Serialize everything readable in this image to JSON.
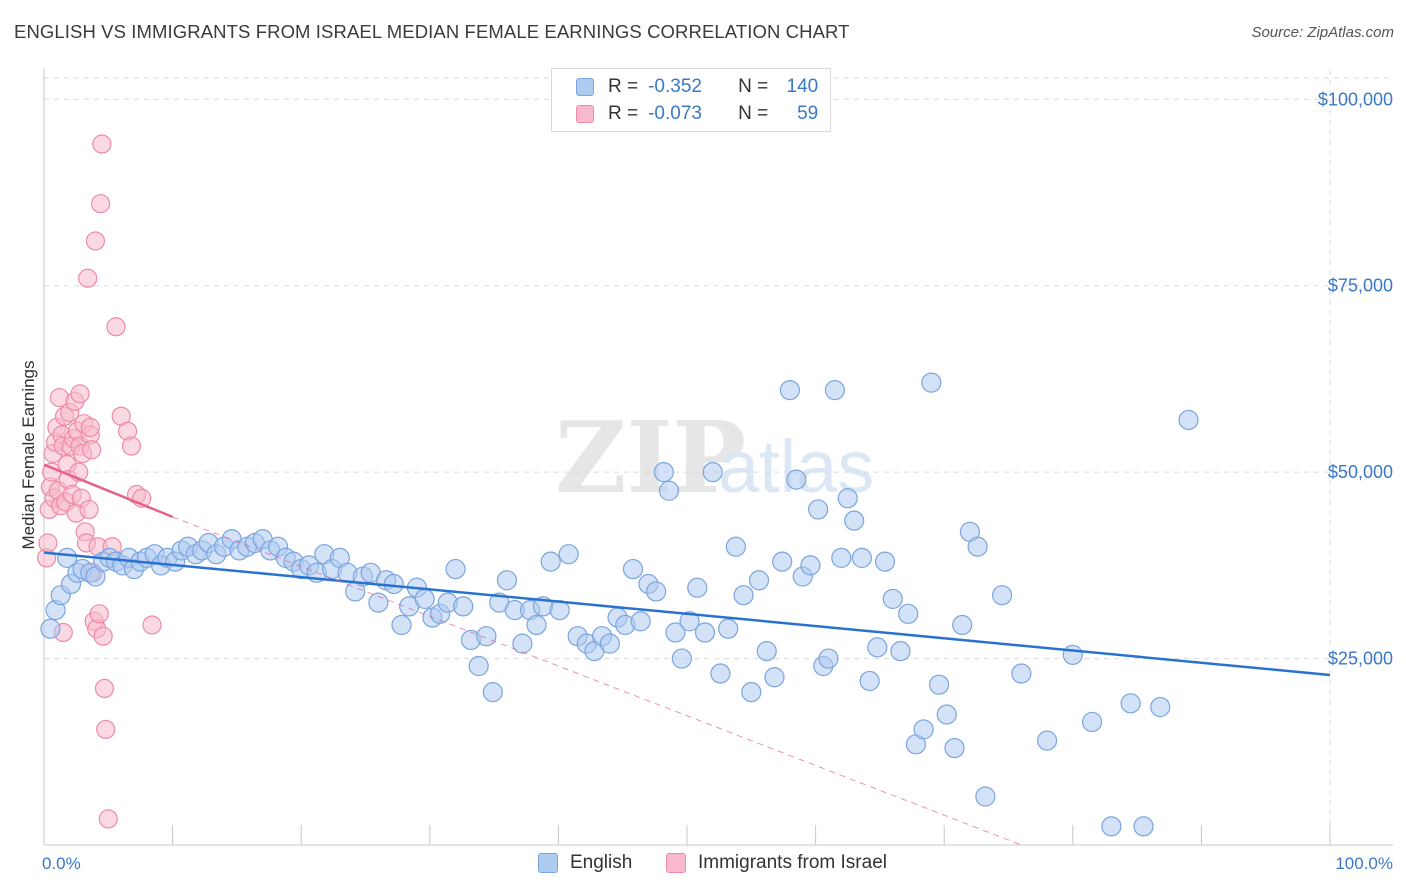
{
  "title": "ENGLISH VS IMMIGRANTS FROM ISRAEL MEDIAN FEMALE EARNINGS CORRELATION CHART",
  "source": "Source: ZipAtlas.com",
  "watermark": {
    "zip": "ZIP",
    "atlas": "atlas"
  },
  "legend": {
    "rows": [
      {
        "r_label": "R =",
        "r_value": "-0.352",
        "n_label": "N =",
        "n_value": "140"
      },
      {
        "r_label": "R =",
        "r_value": "-0.073",
        "n_label": "N =",
        "n_value": "59"
      }
    ]
  },
  "bottom_legend": [
    "English",
    "Immigrants from Israel"
  ],
  "colors": {
    "english_fill": "#aecbf0",
    "english_stroke": "#7aa5de",
    "english_line": "#2a72cf",
    "israel_fill": "#f7b9cb",
    "israel_stroke": "#ee8aa8",
    "israel_line": "#e2648d",
    "tick_text": "#3a78c8",
    "grid": "#dadada"
  },
  "chart_data": {
    "type": "scatter",
    "title": "ENGLISH VS IMMIGRANTS FROM ISRAEL MEDIAN FEMALE EARNINGS CORRELATION CHART",
    "xlabel": "",
    "ylabel": "Median Female Earnings",
    "xlim": [
      0,
      100
    ],
    "ylim": [
      0,
      105000
    ],
    "x_tick_labels": [
      "0.0%",
      "100.0%"
    ],
    "y_ticks": [
      25000,
      50000,
      75000,
      100000
    ],
    "y_tick_labels": [
      "$25,000",
      "$50,000",
      "$75,000",
      "$100,000"
    ],
    "grid": true,
    "legend_position": "top-center",
    "series": [
      {
        "name": "English",
        "r": -0.352,
        "n": 140,
        "trend": {
          "x": [
            0,
            100
          ],
          "y": [
            39200,
            22800
          ],
          "dashed_extension": false
        },
        "points": [
          [
            0.5,
            29000
          ],
          [
            0.9,
            31500
          ],
          [
            1.3,
            33500
          ],
          [
            1.8,
            38500
          ],
          [
            2.1,
            35000
          ],
          [
            2.6,
            36500
          ],
          [
            3.0,
            37000
          ],
          [
            3.6,
            36500
          ],
          [
            4.0,
            36000
          ],
          [
            4.6,
            38000
          ],
          [
            5.1,
            38500
          ],
          [
            5.6,
            38000
          ],
          [
            6.1,
            37500
          ],
          [
            6.6,
            38500
          ],
          [
            7.0,
            37000
          ],
          [
            7.5,
            38000
          ],
          [
            8.0,
            38500
          ],
          [
            8.6,
            39000
          ],
          [
            9.1,
            37500
          ],
          [
            9.6,
            38500
          ],
          [
            10.2,
            38000
          ],
          [
            10.7,
            39500
          ],
          [
            11.2,
            40000
          ],
          [
            11.8,
            39000
          ],
          [
            12.3,
            39500
          ],
          [
            12.8,
            40500
          ],
          [
            13.4,
            39000
          ],
          [
            14.0,
            40000
          ],
          [
            14.6,
            41000
          ],
          [
            15.2,
            39500
          ],
          [
            15.8,
            40000
          ],
          [
            16.4,
            40500
          ],
          [
            17.0,
            41000
          ],
          [
            17.6,
            39500
          ],
          [
            18.2,
            40000
          ],
          [
            18.8,
            38500
          ],
          [
            19.4,
            38000
          ],
          [
            20.0,
            37000
          ],
          [
            20.6,
            37500
          ],
          [
            21.2,
            36500
          ],
          [
            21.8,
            39000
          ],
          [
            22.4,
            37000
          ],
          [
            23.0,
            38500
          ],
          [
            23.6,
            36500
          ],
          [
            24.2,
            34000
          ],
          [
            24.8,
            36000
          ],
          [
            25.4,
            36500
          ],
          [
            26.0,
            32500
          ],
          [
            26.6,
            35500
          ],
          [
            27.2,
            35000
          ],
          [
            27.8,
            29500
          ],
          [
            28.4,
            32000
          ],
          [
            29.0,
            34500
          ],
          [
            29.6,
            33000
          ],
          [
            30.2,
            30500
          ],
          [
            30.8,
            31000
          ],
          [
            31.4,
            32500
          ],
          [
            32.0,
            37000
          ],
          [
            32.6,
            32000
          ],
          [
            33.2,
            27500
          ],
          [
            33.8,
            24000
          ],
          [
            34.4,
            28000
          ],
          [
            34.9,
            20500
          ],
          [
            35.4,
            32500
          ],
          [
            36.0,
            35500
          ],
          [
            36.6,
            31500
          ],
          [
            37.2,
            27000
          ],
          [
            37.8,
            31500
          ],
          [
            38.3,
            29500
          ],
          [
            38.8,
            32000
          ],
          [
            39.4,
            38000
          ],
          [
            40.1,
            31500
          ],
          [
            40.8,
            39000
          ],
          [
            41.5,
            28000
          ],
          [
            42.2,
            27000
          ],
          [
            42.8,
            26000
          ],
          [
            43.4,
            28000
          ],
          [
            44.0,
            27000
          ],
          [
            44.6,
            30500
          ],
          [
            45.2,
            29500
          ],
          [
            45.8,
            37000
          ],
          [
            46.4,
            30000
          ],
          [
            47.0,
            35000
          ],
          [
            47.6,
            34000
          ],
          [
            48.2,
            50000
          ],
          [
            48.6,
            47500
          ],
          [
            49.1,
            28500
          ],
          [
            49.6,
            25000
          ],
          [
            50.2,
            30000
          ],
          [
            50.8,
            34500
          ],
          [
            51.4,
            28500
          ],
          [
            52.0,
            50000
          ],
          [
            52.6,
            23000
          ],
          [
            53.2,
            29000
          ],
          [
            53.8,
            40000
          ],
          [
            54.4,
            33500
          ],
          [
            55.0,
            20500
          ],
          [
            55.6,
            35500
          ],
          [
            56.2,
            26000
          ],
          [
            56.8,
            22500
          ],
          [
            57.4,
            38000
          ],
          [
            58.0,
            61000
          ],
          [
            58.5,
            49000
          ],
          [
            59.0,
            36000
          ],
          [
            59.6,
            37500
          ],
          [
            60.2,
            45000
          ],
          [
            60.6,
            24000
          ],
          [
            61.0,
            25000
          ],
          [
            61.5,
            61000
          ],
          [
            62.0,
            38500
          ],
          [
            62.5,
            46500
          ],
          [
            63.0,
            43500
          ],
          [
            63.6,
            38500
          ],
          [
            64.2,
            22000
          ],
          [
            64.8,
            26500
          ],
          [
            65.4,
            38000
          ],
          [
            66.0,
            33000
          ],
          [
            66.6,
            26000
          ],
          [
            67.2,
            31000
          ],
          [
            67.8,
            13500
          ],
          [
            68.4,
            15500
          ],
          [
            69.0,
            62000
          ],
          [
            69.6,
            21500
          ],
          [
            70.2,
            17500
          ],
          [
            70.8,
            13000
          ],
          [
            71.4,
            29500
          ],
          [
            72.0,
            42000
          ],
          [
            72.6,
            40000
          ],
          [
            73.2,
            6500
          ],
          [
            74.5,
            33500
          ],
          [
            76.0,
            23000
          ],
          [
            78.0,
            14000
          ],
          [
            80.0,
            25500
          ],
          [
            81.5,
            16500
          ],
          [
            83.0,
            2500
          ],
          [
            84.5,
            19000
          ],
          [
            85.5,
            2500
          ],
          [
            86.8,
            18500
          ],
          [
            89.0,
            57000
          ]
        ]
      },
      {
        "name": "Immigrants from Israel",
        "r": -0.073,
        "n": 59,
        "trend": {
          "x": [
            0,
            10
          ],
          "y": [
            51000,
            44000
          ],
          "dashed_extension_to": [
            76,
            0
          ]
        },
        "points": [
          [
            0.2,
            38500
          ],
          [
            0.3,
            40500
          ],
          [
            0.4,
            45000
          ],
          [
            0.5,
            48000
          ],
          [
            0.6,
            50000
          ],
          [
            0.7,
            52500
          ],
          [
            0.8,
            46500
          ],
          [
            0.9,
            54000
          ],
          [
            1.0,
            56000
          ],
          [
            1.1,
            47500
          ],
          [
            1.2,
            60000
          ],
          [
            1.3,
            45500
          ],
          [
            1.4,
            55000
          ],
          [
            1.5,
            53500
          ],
          [
            1.6,
            57500
          ],
          [
            1.7,
            46000
          ],
          [
            1.8,
            51000
          ],
          [
            1.9,
            49000
          ],
          [
            2.0,
            58000
          ],
          [
            2.1,
            53500
          ],
          [
            2.2,
            47000
          ],
          [
            2.3,
            54500
          ],
          [
            2.4,
            59500
          ],
          [
            2.5,
            44500
          ],
          [
            2.6,
            55500
          ],
          [
            2.7,
            50000
          ],
          [
            2.8,
            53500
          ],
          [
            2.9,
            46500
          ],
          [
            3.0,
            52500
          ],
          [
            3.1,
            56500
          ],
          [
            3.2,
            42000
          ],
          [
            3.3,
            40500
          ],
          [
            3.4,
            76000
          ],
          [
            3.5,
            45000
          ],
          [
            3.6,
            55000
          ],
          [
            3.7,
            53000
          ],
          [
            3.8,
            36500
          ],
          [
            3.9,
            30000
          ],
          [
            4.0,
            81000
          ],
          [
            4.1,
            29000
          ],
          [
            4.2,
            40000
          ],
          [
            4.3,
            31000
          ],
          [
            4.4,
            86000
          ],
          [
            4.5,
            94000
          ],
          [
            4.6,
            28000
          ],
          [
            4.7,
            21000
          ],
          [
            4.8,
            15500
          ],
          [
            5.0,
            3500
          ],
          [
            5.3,
            40000
          ],
          [
            5.6,
            69500
          ],
          [
            6.0,
            57500
          ],
          [
            6.5,
            55500
          ],
          [
            6.8,
            53500
          ],
          [
            7.2,
            47000
          ],
          [
            7.6,
            46500
          ],
          [
            8.4,
            29500
          ],
          [
            1.5,
            28500
          ],
          [
            2.8,
            60500
          ],
          [
            3.6,
            56000
          ]
        ]
      }
    ]
  }
}
